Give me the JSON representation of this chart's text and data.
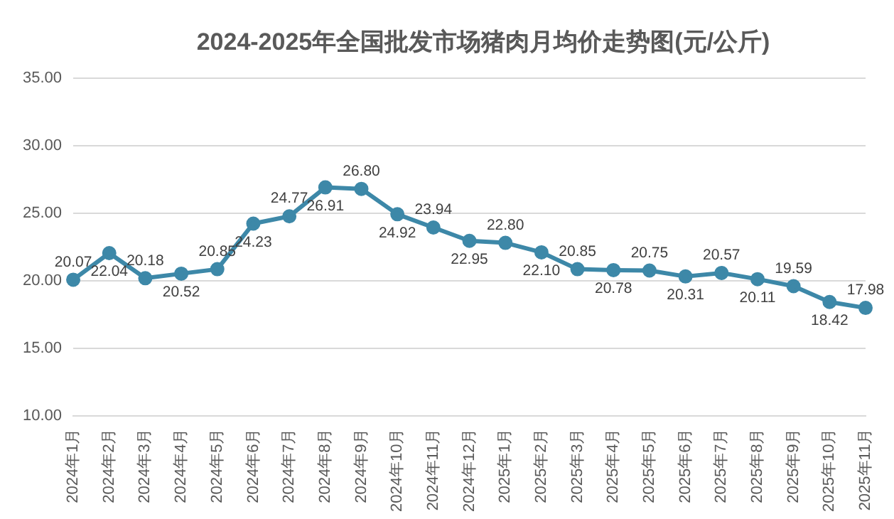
{
  "chart_data": {
    "type": "line",
    "title": "2024-2025年全国批发市场猪肉月均价走势图(元/公斤)",
    "categories": [
      "2024年1月",
      "2024年2月",
      "2024年3月",
      "2024年4月",
      "2024年5月",
      "2024年6月",
      "2024年7月",
      "2024年8月",
      "2024年9月",
      "2024年10月",
      "2024年11月",
      "2024年12月",
      "2025年1月",
      "2025年2月",
      "2025年3月",
      "2025年4月",
      "2025年5月",
      "2025年6月",
      "2025年7月",
      "2025年8月",
      "2025年9月",
      "2025年10月",
      "2025年11月"
    ],
    "series": [
      {
        "color": "#3d88a8",
        "values": [
          20.07,
          22.04,
          20.18,
          20.52,
          20.85,
          24.23,
          24.77,
          26.91,
          26.8,
          24.92,
          23.94,
          22.95,
          22.8,
          22.1,
          20.85,
          20.78,
          20.75,
          20.31,
          20.57,
          20.11,
          19.59,
          18.42,
          17.98
        ],
        "value_labels": [
          "20.07",
          "22.04",
          "20.18",
          "20.52",
          "20.85",
          "24.23",
          "24.77",
          "26.91",
          "26.80",
          "24.92",
          "23.94",
          "22.95",
          "22.80",
          "22.10",
          "20.85",
          "20.78",
          "20.75",
          "20.31",
          "20.57",
          "20.11",
          "19.59",
          "18.42",
          "17.98"
        ]
      }
    ],
    "ylim": [
      10,
      35
    ],
    "yticks": [
      {
        "value": 10,
        "label": "10.00"
      },
      {
        "value": 15,
        "label": "15.00"
      },
      {
        "value": 20,
        "label": "20.00"
      },
      {
        "value": 25,
        "label": "25.00"
      },
      {
        "value": 30,
        "label": "30.00"
      },
      {
        "value": 35,
        "label": "35.00"
      }
    ],
    "grid": "y",
    "legend": false,
    "marker": "circle",
    "line_style": "solid"
  }
}
